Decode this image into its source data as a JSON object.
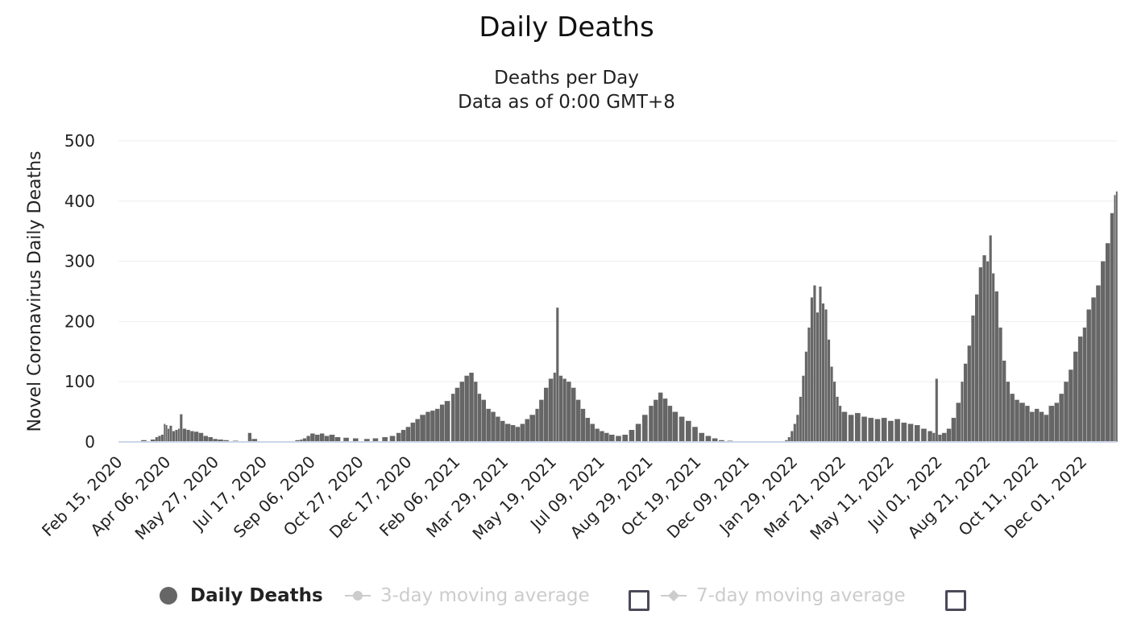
{
  "chart_data": {
    "type": "bar",
    "title": "Daily Deaths",
    "subtitle": [
      "Deaths per Day",
      "Data as of 0:00 GMT+8"
    ],
    "ylabel": "Novel Coronavirus Daily Deaths",
    "xlabel": "",
    "ylim": [
      0,
      500
    ],
    "yticks": [
      0,
      100,
      200,
      300,
      400,
      500
    ],
    "x_start": "Feb 15, 2020",
    "x_end": "Jan 06, 2023",
    "xticks": [
      "Feb 15, 2020",
      "Apr 06, 2020",
      "May 27, 2020",
      "Jul 17, 2020",
      "Sep 06, 2020",
      "Oct 27, 2020",
      "Dec 17, 2020",
      "Feb 06, 2021",
      "Mar 29, 2021",
      "May 19, 2021",
      "Jul 09, 2021",
      "Aug 29, 2021",
      "Oct 19, 2021",
      "Dec 09, 2021",
      "Jan 29, 2022",
      "Mar 21, 2022",
      "May 11, 2022",
      "Jul 01, 2022",
      "Aug 21, 2022",
      "Oct 11, 2022",
      "Dec 01, 2022"
    ],
    "grid": true,
    "bar_color": "#666666",
    "series": [
      {
        "name": "Daily Deaths",
        "points": [
          [
            "Mar 10, 2020",
            3
          ],
          [
            "Mar 20, 2020",
            4
          ],
          [
            "Mar 25, 2020",
            8
          ],
          [
            "Mar 28, 2020",
            10
          ],
          [
            "Mar 31, 2020",
            12
          ],
          [
            "Apr 03, 2020",
            30
          ],
          [
            "Apr 05, 2020",
            28
          ],
          [
            "Apr 07, 2020",
            22
          ],
          [
            "Apr 09, 2020",
            27
          ],
          [
            "Apr 12, 2020",
            18
          ],
          [
            "Apr 15, 2020",
            20
          ],
          [
            "Apr 18, 2020",
            22
          ],
          [
            "Apr 20, 2020",
            46
          ],
          [
            "Apr 23, 2020",
            22
          ],
          [
            "Apr 27, 2020",
            20
          ],
          [
            "May 01, 2020",
            18
          ],
          [
            "May 05, 2020",
            17
          ],
          [
            "May 10, 2020",
            15
          ],
          [
            "May 15, 2020",
            10
          ],
          [
            "May 20, 2020",
            8
          ],
          [
            "May 25, 2020",
            5
          ],
          [
            "May 30, 2020",
            4
          ],
          [
            "Jun 05, 2020",
            3
          ],
          [
            "Jun 15, 2020",
            2
          ],
          [
            "Jul 01, 2020",
            15
          ],
          [
            "Jul 05, 2020",
            5
          ],
          [
            "Aug 20, 2020",
            3
          ],
          [
            "Aug 25, 2020",
            4
          ],
          [
            "Aug 28, 2020",
            6
          ],
          [
            "Sep 01, 2020",
            10
          ],
          [
            "Sep 05, 2020",
            14
          ],
          [
            "Sep 10, 2020",
            12
          ],
          [
            "Sep 15, 2020",
            14
          ],
          [
            "Sep 20, 2020",
            10
          ],
          [
            "Sep 25, 2020",
            12
          ],
          [
            "Oct 01, 2020",
            8
          ],
          [
            "Oct 10, 2020",
            7
          ],
          [
            "Oct 20, 2020",
            6
          ],
          [
            "Nov 01, 2020",
            5
          ],
          [
            "Nov 10, 2020",
            6
          ],
          [
            "Nov 20, 2020",
            8
          ],
          [
            "Nov 28, 2020",
            10
          ],
          [
            "Dec 05, 2020",
            15
          ],
          [
            "Dec 10, 2020",
            20
          ],
          [
            "Dec 15, 2020",
            25
          ],
          [
            "Dec 20, 2020",
            32
          ],
          [
            "Dec 25, 2020",
            38
          ],
          [
            "Dec 30, 2020",
            45
          ],
          [
            "Jan 05, 2021",
            50
          ],
          [
            "Jan 10, 2021",
            52
          ],
          [
            "Jan 15, 2021",
            55
          ],
          [
            "Jan 20, 2021",
            62
          ],
          [
            "Jan 25, 2021",
            68
          ],
          [
            "Feb 01, 2021",
            80
          ],
          [
            "Feb 05, 2021",
            90
          ],
          [
            "Feb 10, 2021",
            100
          ],
          [
            "Feb 15, 2021",
            110
          ],
          [
            "Feb 20, 2021",
            115
          ],
          [
            "Feb 25, 2021",
            100
          ],
          [
            "Mar 01, 2021",
            80
          ],
          [
            "Mar 05, 2021",
            70
          ],
          [
            "Mar 10, 2021",
            55
          ],
          [
            "Mar 15, 2021",
            50
          ],
          [
            "Mar 20, 2021",
            42
          ],
          [
            "Mar 25, 2021",
            35
          ],
          [
            "Mar 30, 2021",
            30
          ],
          [
            "Apr 05, 2021",
            28
          ],
          [
            "Apr 10, 2021",
            25
          ],
          [
            "Apr 15, 2021",
            30
          ],
          [
            "Apr 20, 2021",
            38
          ],
          [
            "Apr 25, 2021",
            45
          ],
          [
            "May 01, 2021",
            55
          ],
          [
            "May 05, 2021",
            70
          ],
          [
            "May 10, 2021",
            90
          ],
          [
            "May 15, 2021",
            105
          ],
          [
            "May 20, 2021",
            115
          ],
          [
            "May 23, 2021",
            223
          ],
          [
            "May 26, 2021",
            110
          ],
          [
            "May 30, 2021",
            105
          ],
          [
            "Jun 03, 2021",
            100
          ],
          [
            "Jun 08, 2021",
            90
          ],
          [
            "Jun 13, 2021",
            70
          ],
          [
            "Jun 18, 2021",
            55
          ],
          [
            "Jun 23, 2021",
            40
          ],
          [
            "Jun 28, 2021",
            30
          ],
          [
            "Jul 03, 2021",
            22
          ],
          [
            "Jul 08, 2021",
            18
          ],
          [
            "Jul 13, 2021",
            15
          ],
          [
            "Jul 18, 2021",
            12
          ],
          [
            "Jul 25, 2021",
            10
          ],
          [
            "Aug 01, 2021",
            12
          ],
          [
            "Aug 08, 2021",
            20
          ],
          [
            "Aug 15, 2021",
            30
          ],
          [
            "Aug 22, 2021",
            45
          ],
          [
            "Aug 29, 2021",
            60
          ],
          [
            "Sep 03, 2021",
            70
          ],
          [
            "Sep 08, 2021",
            82
          ],
          [
            "Sep 13, 2021",
            72
          ],
          [
            "Sep 18, 2021",
            60
          ],
          [
            "Sep 23, 2021",
            50
          ],
          [
            "Sep 30, 2021",
            42
          ],
          [
            "Oct 07, 2021",
            35
          ],
          [
            "Oct 14, 2021",
            25
          ],
          [
            "Oct 21, 2021",
            15
          ],
          [
            "Oct 28, 2021",
            10
          ],
          [
            "Nov 04, 2021",
            6
          ],
          [
            "Nov 11, 2021",
            3
          ],
          [
            "Nov 20, 2021",
            2
          ],
          [
            "Jan 20, 2022",
            3
          ],
          [
            "Jan 23, 2022",
            8
          ],
          [
            "Jan 26, 2022",
            18
          ],
          [
            "Jan 29, 2022",
            30
          ],
          [
            "Feb 01, 2022",
            45
          ],
          [
            "Feb 04, 2022",
            75
          ],
          [
            "Feb 07, 2022",
            110
          ],
          [
            "Feb 10, 2022",
            150
          ],
          [
            "Feb 13, 2022",
            190
          ],
          [
            "Feb 16, 2022",
            240
          ],
          [
            "Feb 19, 2022",
            260
          ],
          [
            "Feb 22, 2022",
            215
          ],
          [
            "Feb 25, 2022",
            258
          ],
          [
            "Feb 28, 2022",
            230
          ],
          [
            "Mar 03, 2022",
            220
          ],
          [
            "Mar 06, 2022",
            170
          ],
          [
            "Mar 09, 2022",
            125
          ],
          [
            "Mar 12, 2022",
            100
          ],
          [
            "Mar 15, 2022",
            75
          ],
          [
            "Mar 18, 2022",
            60
          ],
          [
            "Mar 21, 2022",
            50
          ],
          [
            "Mar 28, 2022",
            45
          ],
          [
            "Apr 04, 2022",
            48
          ],
          [
            "Apr 11, 2022",
            42
          ],
          [
            "Apr 18, 2022",
            40
          ],
          [
            "Apr 25, 2022",
            38
          ],
          [
            "May 02, 2022",
            40
          ],
          [
            "May 09, 2022",
            35
          ],
          [
            "May 16, 2022",
            38
          ],
          [
            "May 23, 2022",
            32
          ],
          [
            "May 30, 2022",
            30
          ],
          [
            "Jun 06, 2022",
            28
          ],
          [
            "Jun 13, 2022",
            22
          ],
          [
            "Jun 20, 2022",
            18
          ],
          [
            "Jun 25, 2022",
            15
          ],
          [
            "Jun 28, 2022",
            105
          ],
          [
            "Jul 01, 2022",
            12
          ],
          [
            "Jul 05, 2022",
            15
          ],
          [
            "Jul 10, 2022",
            22
          ],
          [
            "Jul 15, 2022",
            40
          ],
          [
            "Jul 20, 2022",
            65
          ],
          [
            "Jul 25, 2022",
            100
          ],
          [
            "Jul 28, 2022",
            130
          ],
          [
            "Aug 01, 2022",
            160
          ],
          [
            "Aug 05, 2022",
            210
          ],
          [
            "Aug 09, 2022",
            245
          ],
          [
            "Aug 13, 2022",
            290
          ],
          [
            "Aug 17, 2022",
            310
          ],
          [
            "Aug 21, 2022",
            300
          ],
          [
            "Aug 24, 2022",
            343
          ],
          [
            "Aug 27, 2022",
            280
          ],
          [
            "Aug 30, 2022",
            250
          ],
          [
            "Sep 03, 2022",
            190
          ],
          [
            "Sep 07, 2022",
            135
          ],
          [
            "Sep 11, 2022",
            100
          ],
          [
            "Sep 15, 2022",
            80
          ],
          [
            "Sep 20, 2022",
            70
          ],
          [
            "Sep 25, 2022",
            65
          ],
          [
            "Oct 01, 2022",
            60
          ],
          [
            "Oct 06, 2022",
            50
          ],
          [
            "Oct 11, 2022",
            55
          ],
          [
            "Oct 16, 2022",
            50
          ],
          [
            "Oct 21, 2022",
            45
          ],
          [
            "Oct 26, 2022",
            60
          ],
          [
            "Nov 01, 2022",
            65
          ],
          [
            "Nov 06, 2022",
            80
          ],
          [
            "Nov 11, 2022",
            100
          ],
          [
            "Nov 16, 2022",
            120
          ],
          [
            "Nov 21, 2022",
            150
          ],
          [
            "Nov 26, 2022",
            175
          ],
          [
            "Dec 01, 2022",
            190
          ],
          [
            "Dec 05, 2022",
            220
          ],
          [
            "Dec 10, 2022",
            240
          ],
          [
            "Dec 15, 2022",
            260
          ],
          [
            "Dec 20, 2022",
            300
          ],
          [
            "Dec 25, 2022",
            330
          ],
          [
            "Dec 30, 2022",
            380
          ],
          [
            "Jan 03, 2023",
            410
          ],
          [
            "Jan 05, 2023",
            416
          ]
        ]
      },
      {
        "name": "3-day moving average",
        "visible": false
      },
      {
        "name": "7-day moving average",
        "visible": false
      }
    ],
    "legend_position": "bottom"
  }
}
